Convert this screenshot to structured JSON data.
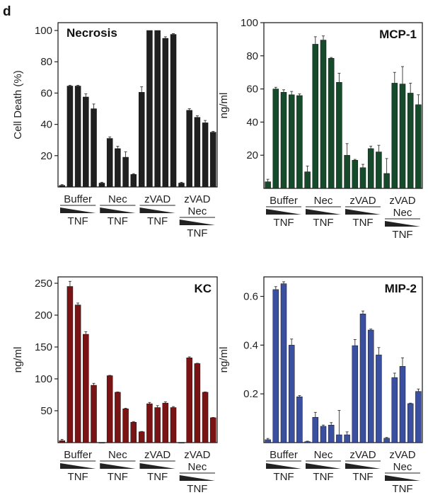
{
  "panel_letter": "d",
  "colors": {
    "necrosis": "#1f1f1f",
    "mcp1": "#154a2a",
    "kc": "#7a1414",
    "mip2": "#3a4fa0"
  },
  "chart_data": [
    {
      "type": "bar",
      "title": "Necrosis",
      "ylabel": "Cell Death (%)",
      "ylim": [
        0,
        105
      ],
      "yticks": [
        20,
        40,
        60,
        80,
        100
      ],
      "ytick_labels": [
        "20",
        "40",
        "60",
        "80",
        "100"
      ],
      "color": "#1f1f1f",
      "groups": [
        {
          "lines": [
            "Buffer"
          ],
          "tnf": "TNF",
          "values": [
            1,
            64.5,
            64.5,
            57.5,
            50
          ],
          "errors": [
            0.5,
            0.5,
            0.5,
            2,
            3
          ]
        },
        {
          "lines": [
            "Nec"
          ],
          "tnf": "TNF",
          "values": [
            2.5,
            31,
            24.5,
            19,
            8
          ],
          "errors": [
            0.5,
            1,
            1.5,
            3.5,
            0.5
          ]
        },
        {
          "lines": [
            "zVAD"
          ],
          "tnf": "TNF",
          "values": [
            60.5,
            100,
            100,
            95,
            97.5
          ],
          "errors": [
            3.5,
            0,
            0,
            1,
            0.5
          ]
        },
        {
          "lines": [
            "zVAD",
            "Nec"
          ],
          "tnf": "TNF",
          "values": [
            2.5,
            49,
            44.5,
            41,
            35
          ],
          "errors": [
            0.5,
            1,
            1,
            1.5,
            0.5
          ]
        }
      ]
    },
    {
      "type": "bar",
      "title": "MCP-1",
      "ylabel": "ng/ml",
      "ylim": [
        0,
        100
      ],
      "yticks": [
        20,
        40,
        60,
        80,
        100
      ],
      "ytick_labels": [
        "20",
        "40",
        "60",
        "80",
        "100"
      ],
      "color": "#154a2a",
      "groups": [
        {
          "lines": [
            "Buffer"
          ],
          "tnf": "TNF",
          "values": [
            4,
            60,
            58,
            56.5,
            56
          ],
          "errors": [
            1.5,
            1,
            1.5,
            2,
            1
          ]
        },
        {
          "lines": [
            "Nec"
          ],
          "tnf": "TNF",
          "values": [
            10,
            87,
            89.5,
            78.5,
            64
          ],
          "errors": [
            3.5,
            4.5,
            2.5,
            0.5,
            5.5
          ]
        },
        {
          "lines": [
            "zVAD"
          ],
          "tnf": "TNF",
          "values": [
            20,
            17,
            12.5,
            24,
            22
          ],
          "errors": [
            7,
            0.5,
            2,
            1.5,
            4
          ]
        },
        {
          "lines": [
            "zVAD",
            "Nec"
          ],
          "tnf": "TNF",
          "values": [
            9,
            63.5,
            63,
            57.5,
            50.5
          ],
          "errors": [
            9,
            6.5,
            10.5,
            6,
            6
          ]
        }
      ]
    },
    {
      "type": "bar",
      "title": "KC",
      "ylabel": "ng/ml",
      "ylim": [
        0,
        260
      ],
      "yticks": [
        50,
        100,
        150,
        200,
        250
      ],
      "ytick_labels": [
        "50",
        "100",
        "150",
        "200",
        "250"
      ],
      "color": "#7a1414",
      "groups": [
        {
          "lines": [
            "Buffer"
          ],
          "tnf": "TNF",
          "values": [
            3,
            245,
            216,
            170,
            90
          ],
          "errors": [
            2,
            8,
            3,
            4,
            3
          ]
        },
        {
          "lines": [
            "Nec"
          ],
          "tnf": "TNF",
          "values": [
            0,
            105,
            79,
            53,
            32
          ],
          "errors": [
            0,
            0.5,
            0.5,
            1,
            1
          ]
        },
        {
          "lines": [
            "zVAD"
          ],
          "tnf": "TNF",
          "values": [
            17,
            61,
            55,
            62,
            55
          ],
          "errors": [
            0.5,
            2,
            3,
            2,
            1.5
          ]
        },
        {
          "lines": [
            "zVAD",
            "Nec"
          ],
          "tnf": "TNF",
          "values": [
            0,
            133,
            124,
            79,
            39
          ],
          "errors": [
            0,
            1.5,
            0.5,
            0.5,
            0.5
          ]
        }
      ]
    },
    {
      "type": "bar",
      "title": "MIP-2",
      "ylabel": "ng/ml",
      "ylim": [
        0,
        0.68
      ],
      "yticks": [
        0.2,
        0.4,
        0.6
      ],
      "ytick_labels": [
        "0.2",
        "0.4",
        "0.6"
      ],
      "color": "#3a4fa0",
      "groups": [
        {
          "lines": [
            "Buffer"
          ],
          "tnf": "TNF",
          "values": [
            0.012,
            0.628,
            0.652,
            0.4,
            0.188
          ],
          "errors": [
            0.005,
            0.012,
            0.008,
            0.025,
            0.005
          ]
        },
        {
          "lines": [
            "Nec"
          ],
          "tnf": "TNF",
          "values": [
            0.004,
            0.104,
            0.067,
            0.072,
            0.032
          ],
          "errors": [
            0.002,
            0.02,
            0.005,
            0.01,
            0.1
          ]
        },
        {
          "lines": [
            "zVAD"
          ],
          "tnf": "TNF",
          "values": [
            0.032,
            0.398,
            0.528,
            0.462,
            0.36
          ],
          "errors": [
            0.012,
            0.025,
            0.012,
            0.004,
            0.03
          ]
        },
        {
          "lines": [
            "zVAD",
            "Nec"
          ],
          "tnf": "TNF",
          "values": [
            0.018,
            0.267,
            0.313,
            0.16,
            0.21
          ],
          "errors": [
            0.003,
            0.018,
            0.035,
            0.002,
            0.01
          ]
        }
      ]
    }
  ]
}
